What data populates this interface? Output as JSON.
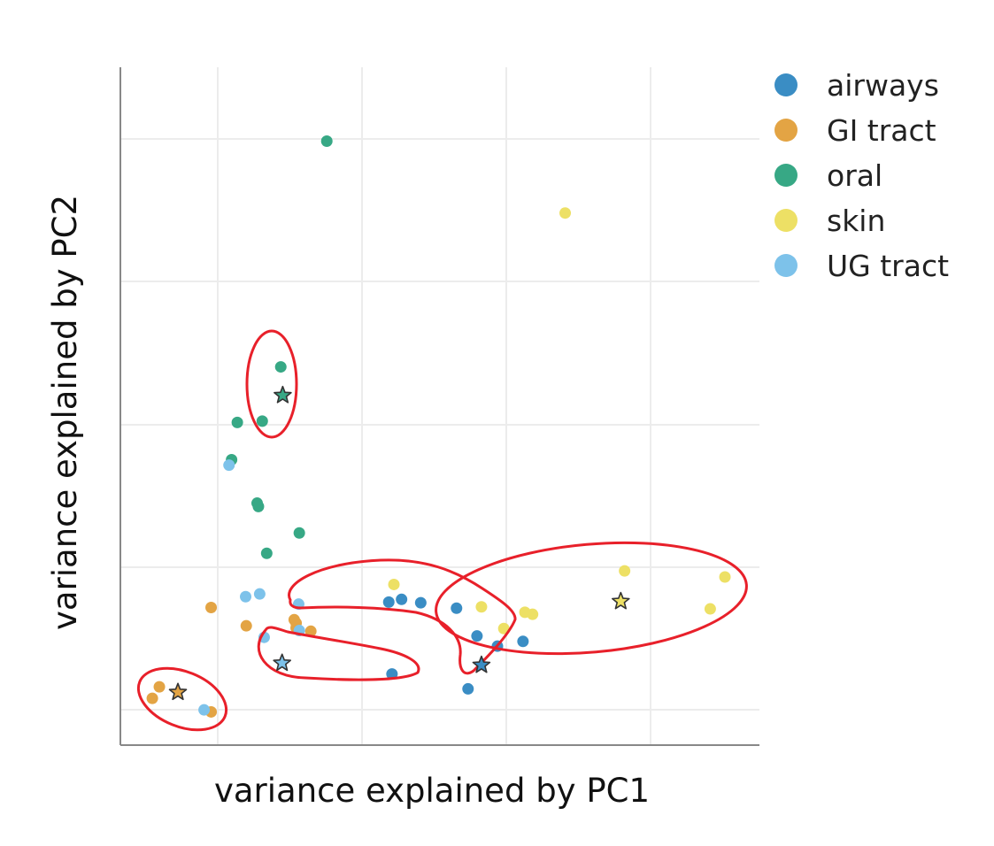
{
  "chart_data": {
    "type": "scatter",
    "title": "",
    "xlabel": "variance explained by PC1",
    "ylabel": "variance explained by PC2",
    "xlim": [
      0,
      100
    ],
    "ylim": [
      0,
      100
    ],
    "grid": true,
    "tick_labels_shown": false,
    "legend_placement": "top-right, outside plot",
    "series": [
      {
        "name": "airways",
        "color": "#3a8dc4",
        "points": [
          [
            42,
            21.1
          ],
          [
            44,
            21.5
          ],
          [
            47,
            21
          ],
          [
            52.6,
            20.2
          ],
          [
            55.8,
            16.1
          ],
          [
            59,
            14.6
          ],
          [
            63,
            15.3
          ],
          [
            54.4,
            8.3
          ],
          [
            42.5,
            10.5
          ]
        ],
        "centroid": [
          56.5,
          11.8
        ]
      },
      {
        "name": "GI tract",
        "color": "#e3a444",
        "points": [
          [
            14.2,
            20.3
          ],
          [
            19.7,
            17.6
          ],
          [
            27.2,
            18.5
          ],
          [
            27.5,
            17.3
          ],
          [
            29.8,
            16.8
          ],
          [
            27.5,
            18
          ],
          [
            6.1,
            8.6
          ],
          [
            5,
            6.9
          ],
          [
            14.2,
            4.9
          ]
        ],
        "centroid": [
          9,
          7.8
        ]
      },
      {
        "name": "oral",
        "color": "#37a885",
        "points": [
          [
            32.3,
            89.1
          ],
          [
            25.1,
            55.8
          ],
          [
            18.3,
            47.6
          ],
          [
            22.2,
            47.8
          ],
          [
            17.4,
            42.1
          ],
          [
            21.4,
            35.7
          ],
          [
            21.6,
            35.2
          ],
          [
            22.9,
            28.3
          ],
          [
            28,
            31.3
          ]
        ],
        "centroid": [
          25.4,
          51.6
        ]
      },
      {
        "name": "skin",
        "color": "#ede065",
        "points": [
          [
            69.6,
            78.5
          ],
          [
            42.8,
            23.7
          ],
          [
            56.5,
            20.4
          ],
          [
            60,
            17.2
          ],
          [
            63.3,
            19.6
          ],
          [
            64.5,
            19.3
          ],
          [
            78.9,
            25.7
          ],
          [
            94.6,
            24.8
          ],
          [
            92.3,
            20.1
          ]
        ],
        "centroid": [
          78.3,
          21.2
        ]
      },
      {
        "name": "UG tract",
        "color": "#7dc2ea",
        "points": [
          [
            17,
            41.3
          ],
          [
            19.6,
            21.9
          ],
          [
            21.8,
            22.3
          ],
          [
            27.9,
            20.8
          ],
          [
            22.5,
            15.9
          ],
          [
            28,
            16.9
          ],
          [
            13.1,
            5.2
          ]
        ],
        "centroid": [
          25.3,
          12.1
        ]
      }
    ],
    "legend": [
      "airways",
      "GI tract",
      "oral",
      "skin",
      "UG tract"
    ],
    "annotations": {
      "shape": "red freehand ellipses outlining clusters",
      "color": "#e8202a",
      "count": 5
    }
  }
}
